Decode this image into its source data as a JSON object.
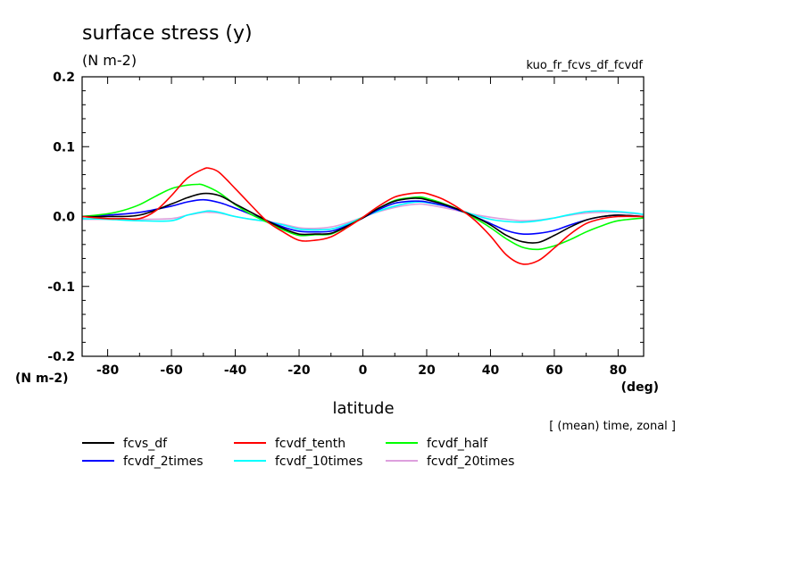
{
  "chart_data": {
    "type": "line",
    "title": "surface stress (y)",
    "title_unit": "(N m-2)",
    "experiment": "kuo_fr_fcvs_df_fcvdf",
    "xlabel": "latitude",
    "x_unit": "(deg)",
    "y_unit": "(N m-2)",
    "annotation": "[ (mean) time, zonal ]",
    "xlim": [
      -88,
      88
    ],
    "ylim": [
      -0.2,
      0.2
    ],
    "x_ticks": [
      -80,
      -60,
      -40,
      -20,
      0,
      20,
      40,
      60,
      80
    ],
    "x_tick_labels": [
      "-80",
      "-60",
      "-40",
      "-20",
      "0",
      "20",
      "40",
      "60",
      "80"
    ],
    "y_ticks": [
      -0.2,
      -0.1,
      0.0,
      0.1,
      0.2
    ],
    "y_tick_labels": [
      "-0.2",
      "-0.1",
      "0.0",
      "0.1",
      "0.2"
    ],
    "grid": false,
    "legend_position": "bottom",
    "series": [
      {
        "name": "fcvs_df",
        "color": "#000000",
        "x": [
          -88,
          -80,
          -70,
          -60,
          -55,
          -50,
          -45,
          -40,
          -35,
          -30,
          -25,
          -20,
          -15,
          -10,
          -5,
          0,
          5,
          10,
          15,
          18,
          20,
          25,
          30,
          35,
          40,
          45,
          50,
          55,
          60,
          65,
          70,
          75,
          80,
          88
        ],
        "y": [
          0.0,
          0.0,
          0.002,
          0.018,
          0.027,
          0.033,
          0.03,
          0.018,
          0.006,
          -0.006,
          -0.017,
          -0.025,
          -0.025,
          -0.024,
          -0.014,
          -0.002,
          0.012,
          0.022,
          0.026,
          0.026,
          0.024,
          0.018,
          0.01,
          0.0,
          -0.012,
          -0.027,
          -0.036,
          -0.037,
          -0.027,
          -0.015,
          -0.005,
          0.0,
          0.002,
          0.0
        ]
      },
      {
        "name": "fcvdf_tenth",
        "color": "#ff0000",
        "x": [
          -88,
          -80,
          -75,
          -70,
          -65,
          -60,
          -55,
          -50,
          -48,
          -45,
          -40,
          -35,
          -30,
          -25,
          -20,
          -15,
          -10,
          -5,
          0,
          5,
          10,
          15,
          18,
          20,
          25,
          30,
          35,
          40,
          45,
          50,
          55,
          60,
          65,
          70,
          75,
          80,
          88
        ],
        "y": [
          0.0,
          -0.003,
          -0.003,
          -0.003,
          0.008,
          0.03,
          0.055,
          0.068,
          0.069,
          0.063,
          0.04,
          0.016,
          -0.007,
          -0.022,
          -0.034,
          -0.034,
          -0.029,
          -0.016,
          -0.001,
          0.015,
          0.028,
          0.033,
          0.034,
          0.033,
          0.025,
          0.012,
          -0.005,
          -0.028,
          -0.055,
          -0.068,
          -0.063,
          -0.045,
          -0.025,
          -0.01,
          -0.003,
          0.0,
          0.0
        ]
      },
      {
        "name": "fcvdf_half",
        "color": "#00ff00",
        "x": [
          -88,
          -80,
          -75,
          -70,
          -65,
          -60,
          -55,
          -52,
          -50,
          -45,
          -40,
          -35,
          -30,
          -25,
          -20,
          -15,
          -10,
          -5,
          0,
          5,
          10,
          15,
          18,
          20,
          25,
          30,
          35,
          40,
          45,
          50,
          55,
          60,
          65,
          70,
          75,
          80,
          88
        ],
        "y": [
          0.0,
          0.004,
          0.009,
          0.017,
          0.029,
          0.04,
          0.045,
          0.046,
          0.045,
          0.034,
          0.017,
          0.003,
          -0.008,
          -0.019,
          -0.027,
          -0.026,
          -0.025,
          -0.014,
          -0.001,
          0.012,
          0.023,
          0.027,
          0.028,
          0.026,
          0.019,
          0.01,
          -0.002,
          -0.016,
          -0.032,
          -0.044,
          -0.047,
          -0.042,
          -0.033,
          -0.022,
          -0.013,
          -0.006,
          -0.002
        ]
      },
      {
        "name": "fcvdf_2times",
        "color": "#0000ff",
        "x": [
          -88,
          -80,
          -70,
          -60,
          -55,
          -50,
          -45,
          -40,
          -35,
          -30,
          -25,
          -20,
          -15,
          -10,
          -5,
          0,
          5,
          10,
          15,
          18,
          20,
          25,
          30,
          35,
          40,
          45,
          50,
          55,
          60,
          65,
          70,
          75,
          80,
          88
        ],
        "y": [
          0.0,
          0.002,
          0.006,
          0.015,
          0.021,
          0.024,
          0.02,
          0.012,
          0.003,
          -0.006,
          -0.015,
          -0.021,
          -0.022,
          -0.021,
          -0.013,
          -0.002,
          0.01,
          0.019,
          0.022,
          0.022,
          0.021,
          0.016,
          0.009,
          0.0,
          -0.01,
          -0.02,
          -0.025,
          -0.024,
          -0.02,
          -0.012,
          -0.005,
          0.0,
          0.002,
          0.0
        ]
      },
      {
        "name": "fcvdf_10times",
        "color": "#00ffff",
        "x": [
          -88,
          -80,
          -70,
          -60,
          -55,
          -50,
          -48,
          -45,
          -40,
          -35,
          -30,
          -25,
          -20,
          -15,
          -10,
          -5,
          0,
          5,
          10,
          15,
          18,
          20,
          25,
          30,
          35,
          40,
          45,
          50,
          55,
          60,
          65,
          70,
          75,
          80,
          85,
          88
        ],
        "y": [
          -0.003,
          -0.004,
          -0.006,
          -0.006,
          0.002,
          0.007,
          0.008,
          0.006,
          0.0,
          -0.004,
          -0.007,
          -0.012,
          -0.018,
          -0.019,
          -0.018,
          -0.011,
          -0.001,
          0.008,
          0.015,
          0.02,
          0.021,
          0.02,
          0.016,
          0.01,
          0.002,
          -0.004,
          -0.007,
          -0.008,
          -0.006,
          -0.002,
          0.003,
          0.007,
          0.008,
          0.007,
          0.005,
          0.003
        ]
      },
      {
        "name": "fcvdf_20times",
        "color": "#dda0dd",
        "x": [
          -88,
          -80,
          -70,
          -60,
          -55,
          -50,
          -48,
          -45,
          -40,
          -35,
          -30,
          -25,
          -20,
          -15,
          -10,
          -5,
          0,
          5,
          10,
          15,
          18,
          20,
          25,
          30,
          35,
          40,
          45,
          50,
          55,
          60,
          65,
          70,
          75,
          80,
          85,
          88
        ],
        "y": [
          -0.004,
          -0.004,
          -0.004,
          -0.003,
          0.002,
          0.006,
          0.006,
          0.005,
          0.0,
          -0.004,
          -0.007,
          -0.011,
          -0.016,
          -0.017,
          -0.015,
          -0.009,
          -0.001,
          0.007,
          0.013,
          0.017,
          0.018,
          0.017,
          0.013,
          0.008,
          0.003,
          -0.001,
          -0.004,
          -0.006,
          -0.005,
          -0.002,
          0.002,
          0.005,
          0.006,
          0.006,
          0.004,
          0.003
        ]
      }
    ]
  }
}
